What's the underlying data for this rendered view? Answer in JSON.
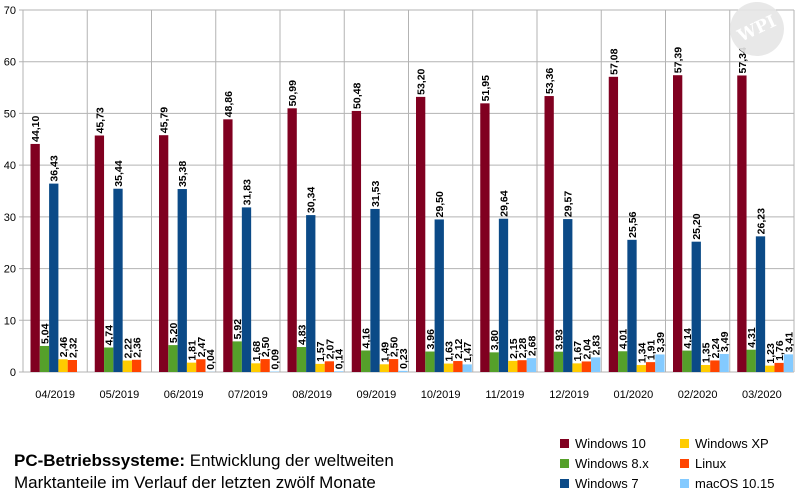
{
  "chart_data": {
    "type": "bar",
    "categories": [
      "04/2019",
      "05/2019",
      "06/2019",
      "07/2019",
      "08/2019",
      "09/2019",
      "10/2019",
      "11/2019",
      "12/2019",
      "01/2020",
      "02/2020",
      "03/2020"
    ],
    "series": [
      {
        "name": "Windows 10",
        "color": "#800020",
        "values": [
          44.1,
          45.73,
          45.79,
          48.86,
          50.99,
          50.48,
          53.2,
          51.95,
          53.36,
          57.08,
          57.39,
          57.34
        ],
        "labels": [
          "44,10",
          "45,73",
          "45,79",
          "48,86",
          "50,99",
          "50,48",
          "53,20",
          "51,95",
          "53,36",
          "57,08",
          "57,39",
          "57,34"
        ]
      },
      {
        "name": "Windows 8.x",
        "color": "#55a02a",
        "values": [
          5.04,
          4.74,
          5.2,
          5.92,
          4.83,
          4.16,
          3.96,
          3.8,
          3.93,
          4.01,
          4.14,
          4.31
        ],
        "labels": [
          "5,04",
          "4,74",
          "5,20",
          "5,92",
          "4,83",
          "4,16",
          "3,96",
          "3,80",
          "3,93",
          "4,01",
          "4,14",
          "4,31"
        ]
      },
      {
        "name": "Windows 7",
        "color": "#0b4a87",
        "values": [
          36.43,
          35.44,
          35.38,
          31.83,
          30.34,
          31.53,
          29.5,
          29.64,
          29.57,
          25.56,
          25.2,
          26.23
        ],
        "labels": [
          "36,43",
          "35,44",
          "35,38",
          "31,83",
          "30,34",
          "31,53",
          "29,50",
          "29,64",
          "29,57",
          "25,56",
          "25,20",
          "26,23"
        ]
      },
      {
        "name": "Windows XP",
        "color": "#ffcc00",
        "values": [
          2.46,
          2.22,
          1.81,
          1.68,
          1.57,
          1.49,
          1.63,
          2.15,
          1.67,
          1.34,
          1.35,
          1.23
        ],
        "labels": [
          "2,46",
          "2,22",
          "1,81",
          "1,68",
          "1,57",
          "1,49",
          "1,63",
          "2,15",
          "1,67",
          "1,34",
          "1,35",
          "1,23"
        ]
      },
      {
        "name": "Linux",
        "color": "#ff4400",
        "values": [
          2.32,
          2.36,
          2.47,
          2.5,
          2.07,
          2.5,
          2.12,
          2.28,
          2.04,
          1.91,
          2.24,
          1.76
        ],
        "labels": [
          "2,32",
          "2,36",
          "2,47",
          "2,50",
          "2,07",
          "2,50",
          "2,12",
          "2,28",
          "2,04",
          "1,91",
          "2,24",
          "1,76"
        ]
      },
      {
        "name": "macOS 10.15",
        "color": "#83caff",
        "values": [
          null,
          null,
          0.04,
          0.09,
          0.14,
          0.23,
          1.47,
          2.68,
          2.83,
          3.39,
          3.49,
          3.41
        ],
        "labels": [
          "",
          "",
          "0,04",
          "0,09",
          "0,14",
          "0,23",
          "1,47",
          "2,68",
          "2,83",
          "3,39",
          "3,49",
          "3,41"
        ]
      }
    ],
    "y_ticks": [
      "0",
      "10",
      "20",
      "30",
      "40",
      "50",
      "60",
      "70"
    ],
    "ylim": [
      0,
      70
    ],
    "grid": true,
    "legend_position": "bottom-right"
  },
  "caption": {
    "bold": "PC-Betriebssysteme:",
    "rest": " Entwicklung der weltweiten Marktanteile im Verlauf der letzten zwölf Monate"
  },
  "logo_text": "WPI"
}
